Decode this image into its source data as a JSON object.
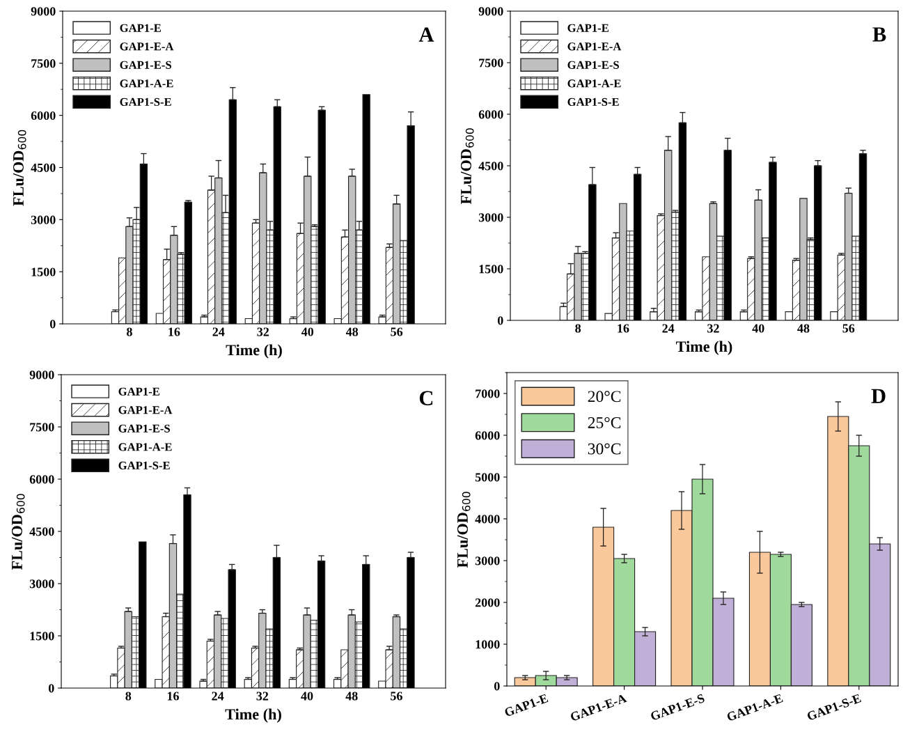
{
  "chart_data": [
    {
      "type": "bar",
      "title": "A",
      "xlabel": "Time (h)",
      "ylabel": "FLu/OD$_{600}$",
      "categories": [
        "8",
        "16",
        "24",
        "32",
        "40",
        "48",
        "56"
      ],
      "ylim": [
        0,
        9000
      ],
      "yticks": [
        0,
        1500,
        3000,
        4500,
        6000,
        7500,
        9000
      ],
      "legend": "top left",
      "series": [
        {
          "name": "GAP1-E",
          "color": "#ffffff",
          "values": [
            350,
            300,
            200,
            150,
            150,
            150,
            200
          ],
          "errors": [
            [
              350,
              400
            ],
            null,
            [
              200,
              250
            ],
            null,
            [
              150,
              200
            ],
            null,
            [
              200,
              250
            ]
          ]
        },
        {
          "name": "GAP1-E-A",
          "color": "#ffffff",
          "values": [
            1900,
            1850,
            3850,
            2900,
            2600,
            2500,
            2200
          ],
          "errors": [
            null,
            [
              1850,
              2150
            ],
            [
              3850,
              4250
            ],
            [
              2900,
              3000
            ],
            [
              2600,
              2900
            ],
            [
              2500,
              2700
            ],
            [
              2200,
              2300
            ]
          ]
        },
        {
          "name": "GAP1-E-S",
          "color": "#c0c0c0",
          "values": [
            2800,
            2550,
            4200,
            4350,
            4250,
            4250,
            3450
          ],
          "errors": [
            [
              2800,
              3050
            ],
            [
              2550,
              2800
            ],
            [
              4200,
              4700
            ],
            [
              4350,
              4600
            ],
            [
              4250,
              4800
            ],
            [
              4250,
              4450
            ],
            [
              3450,
              3700
            ]
          ]
        },
        {
          "name": "GAP1-A-E",
          "color": "#ffffff",
          "values": [
            3000,
            2000,
            3200,
            2700,
            2800,
            2700,
            2400
          ],
          "errors": [
            [
              3000,
              3350
            ],
            [
              2000,
              2050
            ],
            [
              3200,
              3700
            ],
            [
              2700,
              2950
            ],
            [
              2800,
              2850
            ],
            [
              2700,
              2950
            ],
            null
          ]
        },
        {
          "name": "GAP1-S-E",
          "color": "#000000",
          "values": [
            4600,
            3500,
            6450,
            6250,
            6150,
            6600,
            5700
          ],
          "errors": [
            [
              4600,
              4900
            ],
            [
              3500,
              3550
            ],
            [
              6450,
              6800
            ],
            [
              6250,
              6450
            ],
            [
              6150,
              6250
            ],
            null,
            [
              5700,
              6100
            ]
          ]
        }
      ]
    },
    {
      "type": "bar",
      "title": "B",
      "xlabel": "Time (h)",
      "ylabel": "FLu/OD$_{600}$",
      "categories": [
        "8",
        "16",
        "24",
        "32",
        "40",
        "48",
        "56"
      ],
      "ylim": [
        0,
        9000
      ],
      "yticks": [
        0,
        1500,
        3000,
        4500,
        6000,
        7500,
        9000
      ],
      "legend": "top left",
      "series": [
        {
          "name": "GAP1-E",
          "color": "#ffffff",
          "values": [
            400,
            200,
            250,
            250,
            250,
            250,
            250
          ],
          "errors": [
            [
              400,
              500
            ],
            null,
            [
              250,
              350
            ],
            [
              250,
              300
            ],
            [
              250,
              300
            ],
            null,
            null
          ]
        },
        {
          "name": "GAP1-E-A",
          "color": "#ffffff",
          "values": [
            1350,
            2400,
            3050,
            1850,
            1800,
            1750,
            1900
          ],
          "errors": [
            [
              1350,
              1650
            ],
            [
              2400,
              2550
            ],
            [
              3050,
              3100
            ],
            null,
            [
              1800,
              1850
            ],
            [
              1750,
              1800
            ],
            [
              1900,
              1950
            ]
          ]
        },
        {
          "name": "GAP1-E-S",
          "color": "#c0c0c0",
          "values": [
            1950,
            3400,
            4950,
            3400,
            3500,
            3550,
            3700
          ],
          "errors": [
            [
              1950,
              2150
            ],
            null,
            [
              4950,
              5350
            ],
            [
              3400,
              3450
            ],
            [
              3500,
              3800
            ],
            null,
            [
              3700,
              3850
            ]
          ]
        },
        {
          "name": "GAP1-A-E",
          "color": "#ffffff",
          "values": [
            1950,
            2600,
            3150,
            2450,
            2400,
            2350,
            2450
          ],
          "errors": [
            [
              1950,
              2000
            ],
            null,
            [
              3150,
              3200
            ],
            null,
            null,
            [
              2350,
              2400
            ],
            null
          ]
        },
        {
          "name": "GAP1-S-E",
          "color": "#000000",
          "values": [
            3950,
            4250,
            5750,
            4950,
            4600,
            4500,
            4850
          ],
          "errors": [
            [
              3950,
              4450
            ],
            [
              4250,
              4450
            ],
            [
              5750,
              6050
            ],
            [
              4950,
              5300
            ],
            [
              4600,
              4750
            ],
            [
              4500,
              4650
            ],
            [
              4850,
              4950
            ]
          ]
        }
      ]
    },
    {
      "type": "bar",
      "title": "C",
      "xlabel": "Time (h)",
      "ylabel": "FLu/OD$_{600}$",
      "categories": [
        "8",
        "16",
        "24",
        "32",
        "40",
        "48",
        "56"
      ],
      "ylim": [
        0,
        9000
      ],
      "yticks": [
        0,
        1500,
        3000,
        4500,
        6000,
        7500,
        9000
      ],
      "legend": "top left",
      "series": [
        {
          "name": "GAP1-E",
          "color": "#ffffff",
          "values": [
            350,
            250,
            200,
            250,
            250,
            250,
            200
          ],
          "errors": [
            [
              350,
              400
            ],
            null,
            [
              200,
              250
            ],
            [
              250,
              300
            ],
            [
              250,
              300
            ],
            [
              250,
              300
            ],
            null
          ]
        },
        {
          "name": "GAP1-E-A",
          "color": "#ffffff",
          "values": [
            1150,
            2050,
            1350,
            1150,
            1100,
            1100,
            1100
          ],
          "errors": [
            [
              1150,
              1200
            ],
            [
              2050,
              2150
            ],
            [
              1350,
              1400
            ],
            [
              1150,
              1200
            ],
            [
              1100,
              1150
            ],
            null,
            [
              1100,
              1200
            ]
          ]
        },
        {
          "name": "GAP1-E-S",
          "color": "#c0c0c0",
          "values": [
            2200,
            4150,
            2100,
            2150,
            2100,
            2100,
            2050
          ],
          "errors": [
            [
              2200,
              2300
            ],
            [
              4150,
              4400
            ],
            [
              2100,
              2200
            ],
            [
              2150,
              2250
            ],
            [
              2100,
              2300
            ],
            [
              2100,
              2250
            ],
            [
              2050,
              2100
            ]
          ]
        },
        {
          "name": "GAP1-A-E",
          "color": "#ffffff",
          "values": [
            2050,
            2700,
            2000,
            1700,
            1950,
            1900,
            1700
          ]
        },
        {
          "name": "GAP1-S-E",
          "color": "#000000",
          "values": [
            4200,
            5550,
            3400,
            3750,
            3650,
            3550,
            3750
          ],
          "errors": [
            null,
            [
              5550,
              5750
            ],
            [
              3400,
              3550
            ],
            [
              3750,
              4100
            ],
            [
              3650,
              3800
            ],
            [
              3550,
              3800
            ],
            [
              3750,
              3900
            ]
          ]
        }
      ]
    },
    {
      "type": "bar",
      "title": "D",
      "ylabel": "FLu/OD$_{600}$",
      "categories": [
        "GAP1-E",
        "GAP1-E-A",
        "GAP1-E-S",
        "GAP1-A-E",
        "GAP1-S-E"
      ],
      "ylim": [
        0,
        7500
      ],
      "yticks": [
        0,
        1000,
        2000,
        3000,
        4000,
        5000,
        6000,
        7000
      ],
      "legend": "top left",
      "series": [
        {
          "name": "20°C",
          "color": "#f9c89b",
          "values": [
            200,
            3800,
            4200,
            3200,
            6450
          ],
          "errors": [
            50,
            450,
            450,
            500,
            350
          ]
        },
        {
          "name": "25°C",
          "color": "#9fd99b",
          "values": [
            250,
            3050,
            4950,
            3150,
            5750
          ],
          "errors": [
            100,
            100,
            350,
            50,
            250
          ]
        },
        {
          "name": "30°C",
          "color": "#c0afd6",
          "values": [
            200,
            1300,
            2100,
            1950,
            3400
          ],
          "errors": [
            50,
            100,
            150,
            50,
            150
          ]
        }
      ]
    }
  ]
}
